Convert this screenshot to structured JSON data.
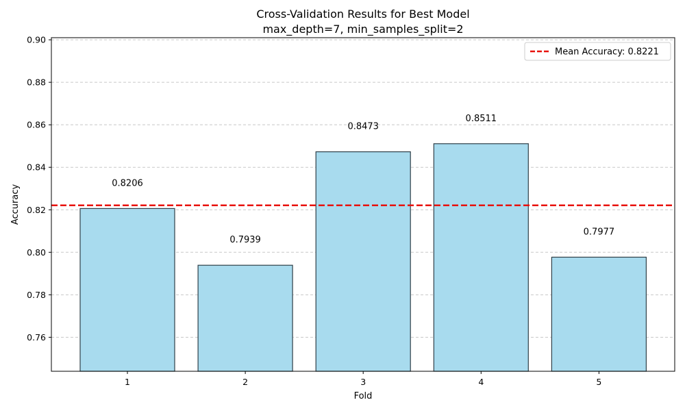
{
  "chart_data": {
    "type": "bar",
    "title": "Cross-Validation Results for Best Model",
    "subtitle": "max_depth=7, min_samples_split=2",
    "xlabel": "Fold",
    "ylabel": "Accuracy",
    "categories": [
      "1",
      "2",
      "3",
      "4",
      "5"
    ],
    "values": [
      0.8206,
      0.7939,
      0.8473,
      0.8511,
      0.7977
    ],
    "data_labels": [
      "0.8206",
      "0.7939",
      "0.8473",
      "0.8511",
      "0.7977"
    ],
    "ylim": [
      0.744,
      0.901
    ],
    "yticks": [
      0.76,
      0.78,
      0.8,
      0.82,
      0.84,
      0.86,
      0.88,
      0.9
    ],
    "ytick_labels": [
      "0.76",
      "0.78",
      "0.80",
      "0.82",
      "0.84",
      "0.86",
      "0.88",
      "0.90"
    ],
    "mean_line": {
      "value": 0.8221,
      "label": "Mean Accuracy: 0.8221"
    },
    "grid": "y-dashed",
    "legend_position": "top-right",
    "colors": {
      "bar_fill": "#a8dbee",
      "bar_edge": "#2f3f48",
      "mean_line": "#e8120c",
      "grid": "#c8c8c8"
    }
  }
}
